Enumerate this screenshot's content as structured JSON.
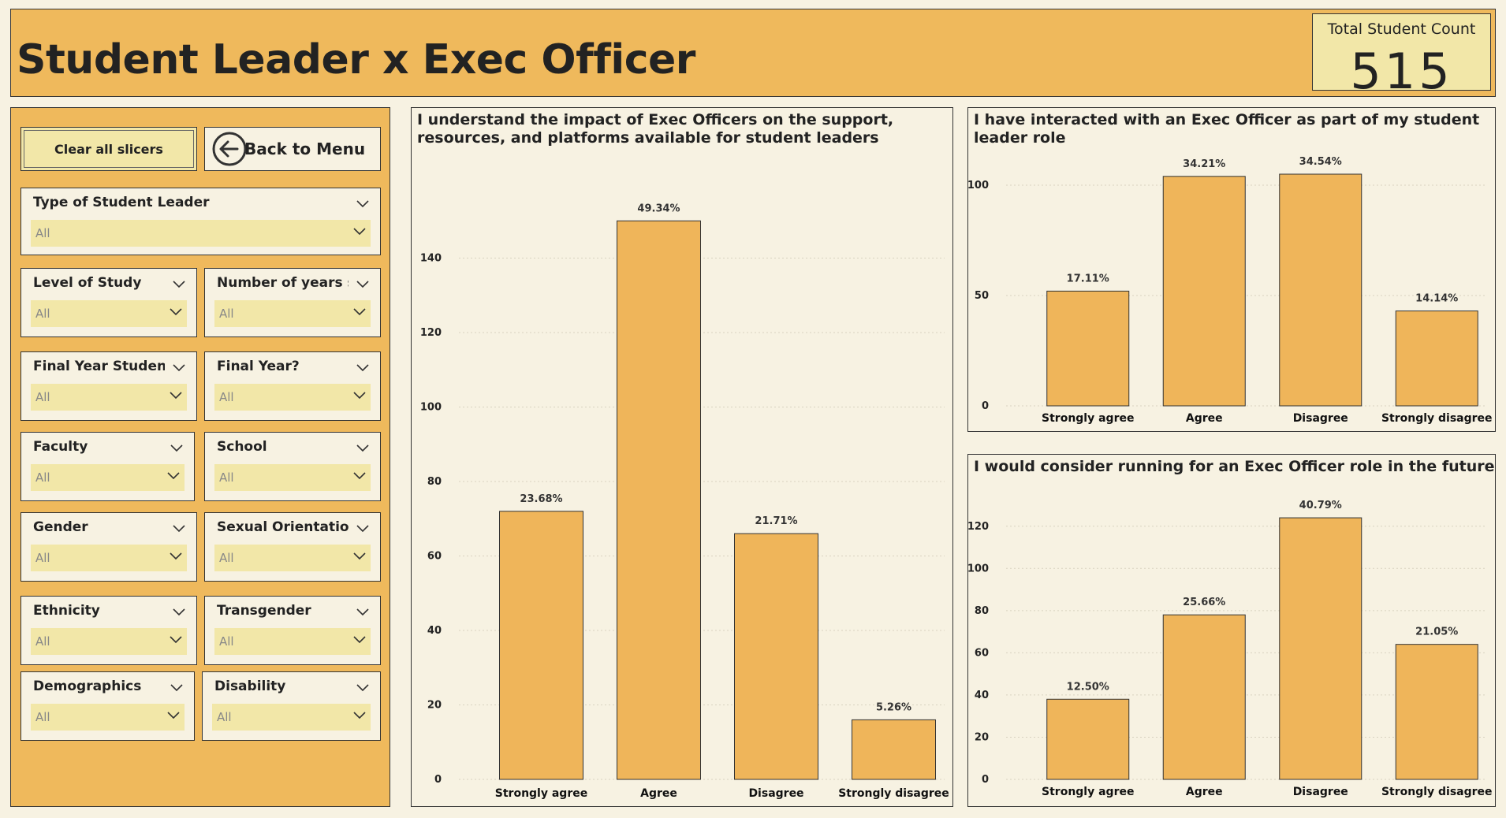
{
  "header": {
    "title": "Student Leader x Exec Officer",
    "kpi_label": "Total Student Count",
    "kpi_value": "515"
  },
  "buttons": {
    "clear_label": "Clear all slicers",
    "back_label": "Back to Menu",
    "back_icon": "circle-arrow-left-icon"
  },
  "slicers": [
    {
      "title": "Type of Student Leader",
      "value": "All"
    },
    {
      "title": "Level of Study",
      "value": "All"
    },
    {
      "title": "Number of years s...",
      "value": "All"
    },
    {
      "title": "Final Year Student ...",
      "value": "All"
    },
    {
      "title": "Final Year?",
      "value": "All"
    },
    {
      "title": "Faculty",
      "value": "All"
    },
    {
      "title": "School",
      "value": "All"
    },
    {
      "title": "Gender",
      "value": "All"
    },
    {
      "title": "Sexual Orientation",
      "value": "All"
    },
    {
      "title": "Ethnicity",
      "value": "All"
    },
    {
      "title": "Transgender",
      "value": "All"
    },
    {
      "title": "Demographics",
      "value": "All"
    },
    {
      "title": "Disability",
      "value": "All"
    }
  ],
  "colors": {
    "accent": "#efb95c",
    "panel_bg": "#f7f2e2",
    "slicer_bg": "#f2e7a8",
    "bar": "#efb55a"
  },
  "chart_data": [
    {
      "type": "bar",
      "title": "I understand the impact of Exec Officers on the support, resources, and platforms available for student leaders",
      "categories": [
        "Strongly agree",
        "Agree",
        "Disagree",
        "Strongly disagree"
      ],
      "values": [
        72,
        150,
        66,
        16
      ],
      "data_labels": [
        "23.68%",
        "49.34%",
        "21.71%",
        "5.26%"
      ],
      "yticks": [
        0,
        20,
        40,
        60,
        80,
        100,
        120,
        140
      ],
      "ylim": [
        0,
        160
      ]
    },
    {
      "type": "bar",
      "title": "I have interacted with an Exec Officer as part of my student leader role",
      "categories": [
        "Strongly agree",
        "Agree",
        "Disagree",
        "Strongly disagree"
      ],
      "values": [
        52,
        104,
        105,
        43
      ],
      "data_labels": [
        "17.11%",
        "34.21%",
        "34.54%",
        "14.14%"
      ],
      "yticks": [
        0,
        50,
        100
      ],
      "ylim": [
        0,
        110
      ]
    },
    {
      "type": "bar",
      "title": "I would consider running for an Exec Officer role in the future",
      "categories": [
        "Strongly agree",
        "Agree",
        "Disagree",
        "Strongly disagree"
      ],
      "values": [
        38,
        78,
        124,
        64
      ],
      "data_labels": [
        "12.50%",
        "25.66%",
        "40.79%",
        "21.05%"
      ],
      "yticks": [
        0,
        20,
        40,
        60,
        80,
        100,
        120
      ],
      "ylim": [
        0,
        130
      ]
    }
  ]
}
